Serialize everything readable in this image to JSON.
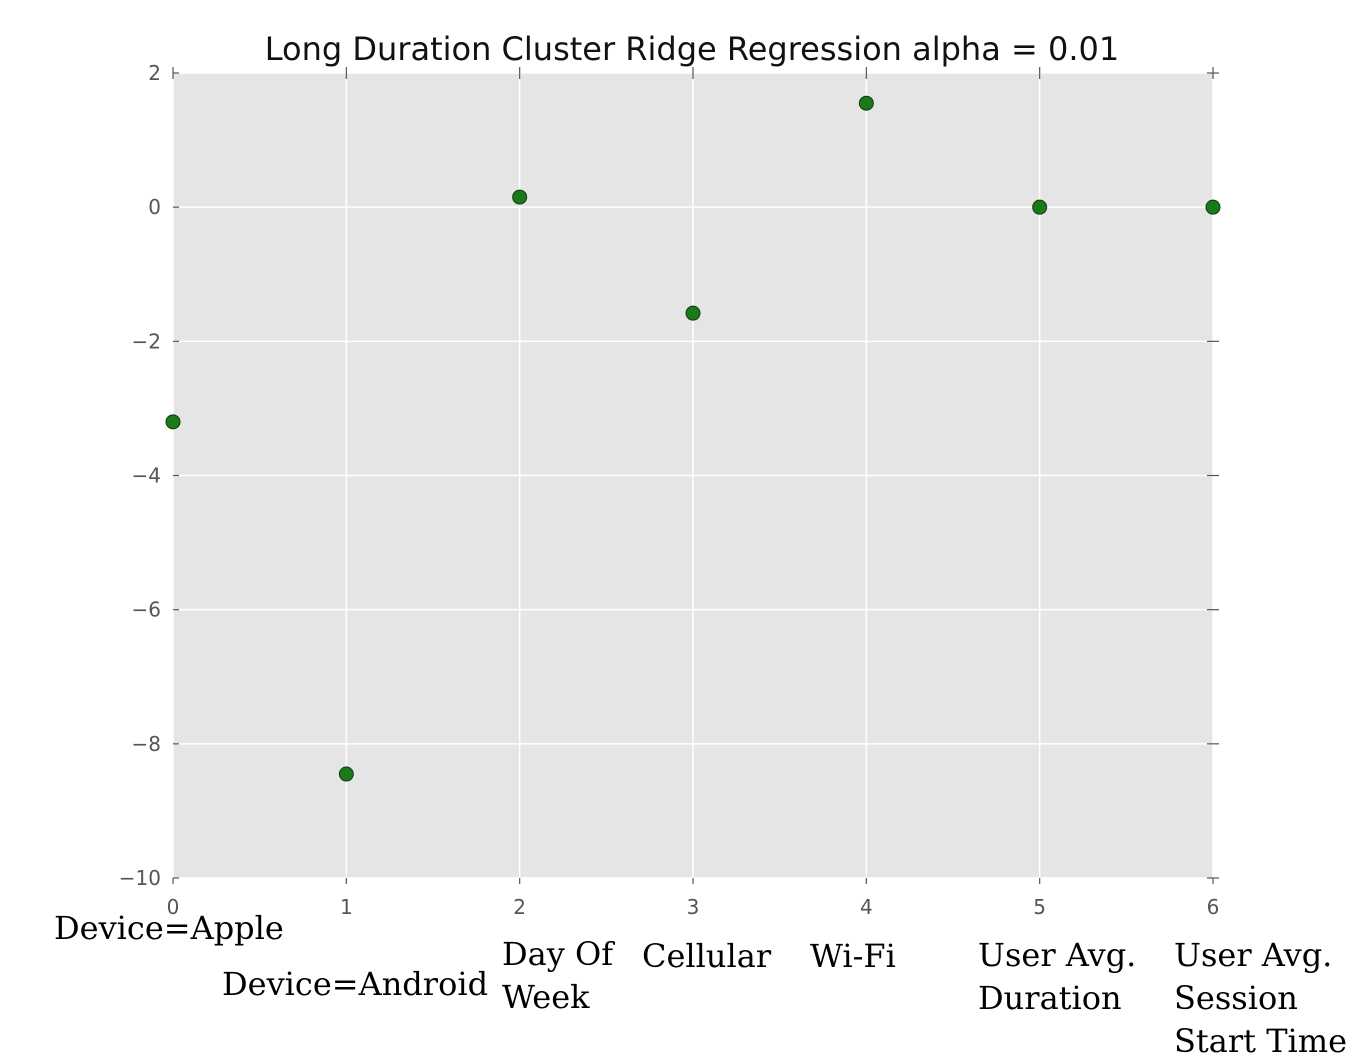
{
  "chart_data": {
    "type": "scatter",
    "title": "Long Duration Cluster Ridge Regression alpha = 0.01",
    "xlabel": "",
    "ylabel": "",
    "x": [
      0,
      1,
      2,
      3,
      4,
      5,
      6
    ],
    "y": [
      -3.2,
      -8.45,
      0.15,
      -1.58,
      1.55,
      0.0,
      0.0
    ],
    "xlim": [
      0,
      6
    ],
    "ylim": [
      -10,
      2
    ],
    "xticks": [
      0,
      1,
      2,
      3,
      4,
      5,
      6
    ],
    "yticks": [
      -10,
      -8,
      -6,
      -4,
      -2,
      0,
      2
    ],
    "xtick_labels": [
      "0",
      "1",
      "2",
      "3",
      "4",
      "5",
      "6"
    ],
    "ytick_labels": [
      "−10",
      "−8",
      "−6",
      "−4",
      "−2",
      "0",
      "2"
    ],
    "grid": true,
    "marker_color": "#1a7a1a",
    "background_color": "#e5e5e5"
  },
  "feature_labels": [
    "Device=Apple",
    "Device=Android",
    "Day Of\nWeek",
    "Cellular",
    "Wi-Fi",
    "User Avg.\nDuration",
    "User Avg.\nSession\nStart Time"
  ]
}
